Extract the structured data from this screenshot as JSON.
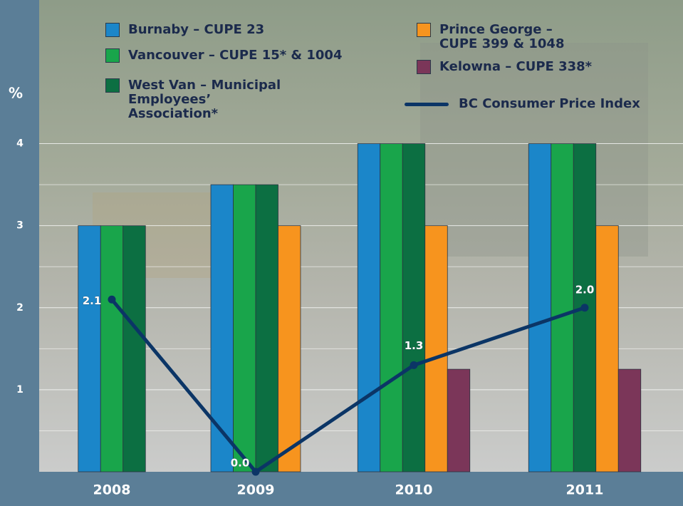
{
  "chart_data": {
    "type": "bar",
    "y_axis_label": "%",
    "categories": [
      "2008",
      "2009",
      "2010",
      "2011"
    ],
    "ylim": [
      0,
      4.5
    ],
    "yticks": [
      1,
      2,
      3,
      4
    ],
    "minor_yticks": [
      0.5,
      1.5,
      2.5,
      3.5
    ],
    "grid": true,
    "series": [
      {
        "name": "Burnaby – CUPE 23",
        "color": "#1b86c9",
        "values": [
          3,
          3.5,
          4,
          4
        ]
      },
      {
        "name": "Vancouver – CUPE 15* & 1004",
        "color": "#19a54b",
        "values": [
          3,
          3.5,
          4,
          4
        ]
      },
      {
        "name": "West Van – Municipal Employees’ Association*",
        "color": "#0c6f42",
        "values": [
          3,
          3.5,
          4,
          4
        ]
      },
      {
        "name": "Prince George – CUPE 399 & 1048",
        "color": "#f7941e",
        "values": [
          null,
          3,
          3,
          3
        ]
      },
      {
        "name": "Kelowna – CUPE 338*",
        "color": "#7b3659",
        "values": [
          null,
          null,
          1.25,
          1.25
        ]
      },
      {
        "name": "BC Consumer Price Index",
        "type": "line",
        "color": "#0b3566",
        "values": [
          2.1,
          0.0,
          1.3,
          2.0
        ],
        "value_labels": [
          "2.1",
          "0.0",
          "1.3",
          "2.0"
        ]
      }
    ]
  }
}
